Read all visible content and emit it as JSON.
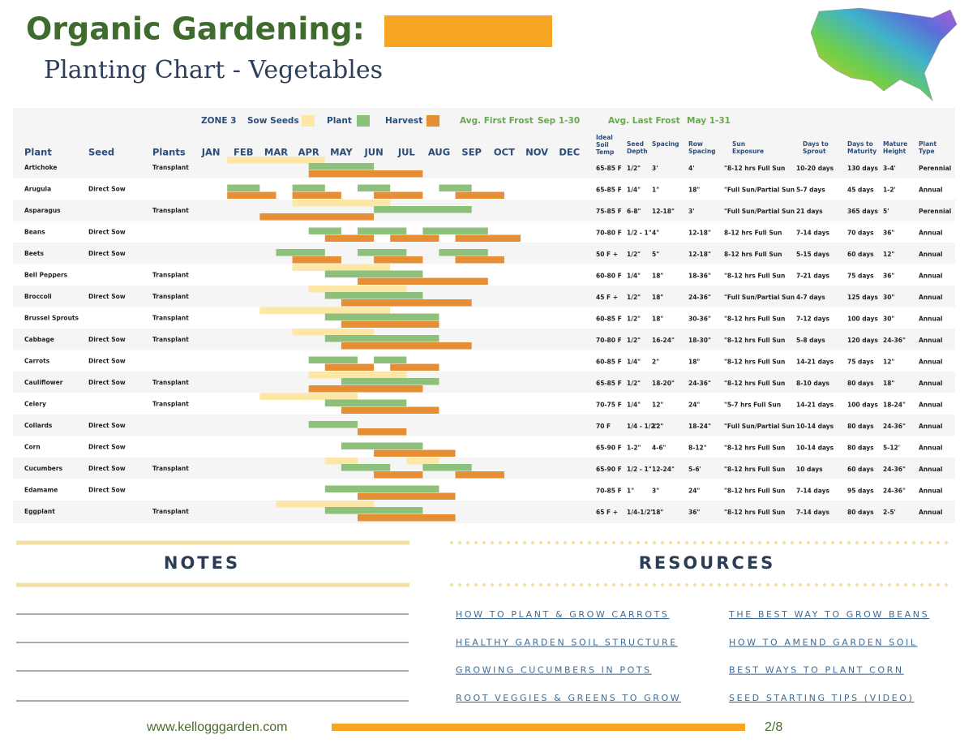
{
  "header": {
    "title": "Organic Gardening:",
    "subtitle": "Planting Chart - Vegetables"
  },
  "legend": {
    "zone": "ZONE 3",
    "sow": "Sow Seeds",
    "plant": "Plant",
    "harvest": "Harvest",
    "first_frost": "Avg. First Frost",
    "first_frost_dates": "Sep 1-30",
    "last_frost": "Avg. Last Frost",
    "last_frost_dates": "May 1-31"
  },
  "columns": {
    "plant": "Plant",
    "seed": "Seed",
    "plants": "Plants",
    "temp": [
      "Ideal",
      "Soil",
      "Temp"
    ],
    "depth": [
      "Seed",
      "Depth"
    ],
    "spacing": [
      "Spacing"
    ],
    "row_spacing": [
      "Row",
      "Spacing"
    ],
    "sun": [
      "Sun",
      "Exposure"
    ],
    "sprout": [
      "Days to",
      "Sprout"
    ],
    "maturity": [
      "Days to",
      "Maturity"
    ],
    "height": [
      "Mature",
      "Height"
    ],
    "type": [
      "Plant",
      "Type"
    ]
  },
  "months": [
    "JAN",
    "FEB",
    "MAR",
    "APR",
    "MAY",
    "JUN",
    "JUL",
    "AUG",
    "SEP",
    "OCT",
    "NOV",
    "DEC"
  ],
  "rows": [
    {
      "plant": "Artichoke",
      "seed": null,
      "plants": "Transplant",
      "temp": "65-85 F",
      "depth": "1/2\"",
      "spacing": "3'",
      "row_spacing": "4'",
      "sun": "\"8-12 hrs Full Sun",
      "sprout": "10-20 days",
      "maturity": "130 days",
      "height": "3-4'",
      "type": "Perennial",
      "sow": [
        [
          1,
          4
        ]
      ],
      "plant_bars": [
        [
          3.5,
          5.5
        ]
      ],
      "harvest": [
        [
          3.5,
          7
        ]
      ]
    },
    {
      "plant": "Arugula",
      "seed": "Direct Sow",
      "plants": null,
      "temp": "65-85 F",
      "depth": "1/4\"",
      "spacing": "1\"",
      "row_spacing": "18\"",
      "sun": "\"Full Sun/Partial Sun",
      "sprout": "5-7 days",
      "maturity": "45 days",
      "height": "1-2'",
      "type": "Annual",
      "sow": [],
      "plant_bars": [
        [
          1,
          2
        ],
        [
          3,
          4
        ],
        [
          5,
          6
        ],
        [
          7.5,
          8.5
        ]
      ],
      "harvest": [
        [
          1,
          2.5
        ],
        [
          3,
          4.5
        ],
        [
          5.5,
          7
        ],
        [
          8,
          9.5
        ]
      ]
    },
    {
      "plant": "Asparagus",
      "seed": null,
      "plants": "Transplant",
      "temp": "75-85 F",
      "depth": "6-8\"",
      "spacing": "12-18\"",
      "row_spacing": "3'",
      "sun": "\"Full Sun/Partial Sun",
      "sprout": "21 days",
      "maturity": "365 days",
      "height": "5'",
      "type": "Perennial",
      "sow": [
        [
          3,
          6
        ]
      ],
      "plant_bars": [
        [
          5.5,
          8.5
        ]
      ],
      "harvest": [
        [
          2,
          5.5
        ]
      ]
    },
    {
      "plant": "Beans",
      "seed": "Direct Sow",
      "plants": null,
      "temp": "70-80 F",
      "depth": "1/2 - 1\"",
      "spacing": "4\"",
      "row_spacing": "12-18\"",
      "sun": "8-12 hrs Full Sun",
      "sprout": "7-14 days",
      "maturity": "70 days",
      "height": "36\"",
      "type": "Annual",
      "sow": [],
      "plant_bars": [
        [
          3.5,
          4.5
        ],
        [
          5,
          6.5
        ],
        [
          7,
          9
        ]
      ],
      "harvest": [
        [
          4,
          5.5
        ],
        [
          6,
          7.5
        ],
        [
          8,
          10
        ]
      ]
    },
    {
      "plant": "Beets",
      "seed": "Direct Sow",
      "plants": null,
      "temp": "50 F +",
      "depth": "1/2\"",
      "spacing": "5\"",
      "row_spacing": "12-18\"",
      "sun": "8-12 hrs Full Sun",
      "sprout": "5-15 days",
      "maturity": "60 days",
      "height": "12\"",
      "type": "Annual",
      "sow": [],
      "plant_bars": [
        [
          2.5,
          4
        ],
        [
          5,
          6.5
        ],
        [
          7.5,
          9
        ]
      ],
      "harvest": [
        [
          3,
          4.5
        ],
        [
          5.5,
          7
        ],
        [
          8,
          9.5
        ]
      ]
    },
    {
      "plant": "Bell Peppers",
      "seed": null,
      "plants": "Transplant",
      "temp": "60-80 F",
      "depth": "1/4\"",
      "spacing": "18\"",
      "row_spacing": "18-36\"",
      "sun": "\"8-12 hrs Full Sun",
      "sprout": "7-21 days",
      "maturity": "75 days",
      "height": "36\"",
      "type": "Annual",
      "sow": [
        [
          3,
          6
        ]
      ],
      "plant_bars": [
        [
          4,
          7
        ]
      ],
      "harvest": [
        [
          5,
          9
        ]
      ]
    },
    {
      "plant": "Broccoli",
      "seed": "Direct Sow",
      "plants": "Transplant",
      "temp": "45 F +",
      "depth": "1/2\"",
      "spacing": "18\"",
      "row_spacing": "24-36\"",
      "sun": "\"Full Sun/Partial Sun",
      "sprout": "4-7 days",
      "maturity": "125 days",
      "height": "30\"",
      "type": "Annual",
      "sow": [
        [
          3.5,
          6.5
        ]
      ],
      "plant_bars": [
        [
          4,
          7
        ]
      ],
      "harvest": [
        [
          4.5,
          8.5
        ]
      ]
    },
    {
      "plant": "Brussel Sprouts",
      "seed": null,
      "plants": "Transplant",
      "temp": "60-85 F",
      "depth": "1/2\"",
      "spacing": "18\"",
      "row_spacing": "30-36\"",
      "sun": "\"8-12 hrs Full Sun",
      "sprout": "7-12 days",
      "maturity": "100 days",
      "height": "30\"",
      "type": "Annual",
      "sow": [
        [
          2,
          6
        ]
      ],
      "plant_bars": [
        [
          4,
          7.5
        ]
      ],
      "harvest": [
        [
          4.5,
          7.5
        ]
      ]
    },
    {
      "plant": "Cabbage",
      "seed": "Direct Sow",
      "plants": "Transplant",
      "temp": "70-80 F",
      "depth": "1/2\"",
      "spacing": "16-24\"",
      "row_spacing": "18-30\"",
      "sun": "\"8-12 hrs Full Sun",
      "sprout": "5-8 days",
      "maturity": "120 days",
      "height": "24-36\"",
      "type": "Annual",
      "sow": [
        [
          3,
          5.5
        ]
      ],
      "plant_bars": [
        [
          4,
          7.5
        ]
      ],
      "harvest": [
        [
          4.5,
          8.5
        ]
      ]
    },
    {
      "plant": "Carrots",
      "seed": "Direct Sow",
      "plants": null,
      "temp": "60-85 F",
      "depth": "1/4\"",
      "spacing": "2\"",
      "row_spacing": "18\"",
      "sun": "\"8-12 hrs Full Sun",
      "sprout": "14-21 days",
      "maturity": "75 days",
      "height": "12\"",
      "type": "Annual",
      "sow": [],
      "plant_bars": [
        [
          3.5,
          5
        ],
        [
          5.5,
          6.5
        ]
      ],
      "harvest": [
        [
          4,
          5.5
        ],
        [
          6,
          7.5
        ]
      ]
    },
    {
      "plant": "Cauliflower",
      "seed": "Direct Sow",
      "plants": "Transplant",
      "temp": "65-85 F",
      "depth": "1/2\"",
      "spacing": "18-20\"",
      "row_spacing": "24-36\"",
      "sun": "\"8-12 hrs Full Sun",
      "sprout": "8-10 days",
      "maturity": "80 days",
      "height": "18\"",
      "type": "Annual",
      "sow": [
        [
          3.5,
          6.5
        ]
      ],
      "plant_bars": [
        [
          4.5,
          7.5
        ]
      ],
      "harvest": [
        [
          3.5,
          7
        ]
      ]
    },
    {
      "plant": "Celery",
      "seed": null,
      "plants": "Transplant",
      "temp": "70-75 F",
      "depth": "1/4\"",
      "spacing": "12\"",
      "row_spacing": "24\"",
      "sun": "\"5-7 hrs Full Sun",
      "sprout": "14-21 days",
      "maturity": "100 days",
      "height": "18-24\"",
      "type": "Annual",
      "sow": [
        [
          2,
          5
        ]
      ],
      "plant_bars": [
        [
          4,
          6.5
        ]
      ],
      "harvest": [
        [
          4.5,
          7.5
        ]
      ]
    },
    {
      "plant": "Collards",
      "seed": "Direct Sow",
      "plants": null,
      "temp": "70 F",
      "depth": "1/4 - 1/2\"",
      "spacing": "12\"",
      "row_spacing": "18-24\"",
      "sun": "\"Full Sun/Partial Sun",
      "sprout": "10-14 days",
      "maturity": "80 days",
      "height": "24-36\"",
      "type": "Annual",
      "sow": [],
      "plant_bars": [
        [
          3.5,
          5
        ]
      ],
      "harvest": [
        [
          5,
          6.5
        ]
      ]
    },
    {
      "plant": "Corn",
      "seed": "Direct Sow",
      "plants": null,
      "temp": "65-90 F",
      "depth": "1-2\"",
      "spacing": "4-6\"",
      "row_spacing": "8-12\"",
      "sun": "\"8-12 hrs Full Sun",
      "sprout": "10-14 days",
      "maturity": "80 days",
      "height": "5-12'",
      "type": "Annual",
      "sow": [],
      "plant_bars": [
        [
          4.5,
          7
        ]
      ],
      "harvest": [
        [
          5.5,
          8
        ]
      ]
    },
    {
      "plant": "Cucumbers",
      "seed": "Direct Sow",
      "plants": "Transplant",
      "temp": "65-90 F",
      "depth": "1/2 - 1\"",
      "spacing": "12-24\"",
      "row_spacing": "5-6'",
      "sun": "\"8-12 hrs Full Sun",
      "sprout": "10 days",
      "maturity": "60 days",
      "height": "24-36\"",
      "type": "Annual",
      "sow": [
        [
          4,
          5
        ],
        [
          6.5,
          7.5
        ]
      ],
      "plant_bars": [
        [
          4.5,
          6
        ],
        [
          7,
          8.5
        ]
      ],
      "harvest": [
        [
          5.5,
          7
        ],
        [
          8,
          9.5
        ]
      ]
    },
    {
      "plant": "Edamame",
      "seed": "Direct Sow",
      "plants": null,
      "temp": "70-85 F",
      "depth": "1\"",
      "spacing": "3\"",
      "row_spacing": "24\"",
      "sun": "\"8-12 hrs Full Sun",
      "sprout": "7-14 days",
      "maturity": "95 days",
      "height": "24-36\"",
      "type": "Annual",
      "sow": [],
      "plant_bars": [
        [
          4,
          7.5
        ]
      ],
      "harvest": [
        [
          5,
          8
        ]
      ]
    },
    {
      "plant": "Eggplant",
      "seed": null,
      "plants": "Transplant",
      "temp": "65 F +",
      "depth": "1/4-1/2\"",
      "spacing": "18\"",
      "row_spacing": "36\"",
      "sun": "\"8-12 hrs Full Sun",
      "sprout": "7-14 days",
      "maturity": "80 days",
      "height": "2-5'",
      "type": "Annual",
      "sow": [
        [
          2.5,
          5.5
        ]
      ],
      "plant_bars": [
        [
          4,
          7
        ]
      ],
      "harvest": [
        [
          5,
          8
        ]
      ]
    }
  ],
  "notes": {
    "title": "NOTES"
  },
  "resources": {
    "title": "RESOURCES",
    "links": [
      "HOW TO PLANT & GROW CARROTS",
      "THE BEST WAY TO GROW BEANS",
      "HEALTHY GARDEN SOIL STRUCTURE",
      "HOW TO AMEND GARDEN SOIL",
      "GROWING CUCUMBERS IN POTS",
      "BEST WAYS TO PLANT CORN",
      "ROOT VEGGIES & GREENS TO GROW",
      "SEED STARTING TIPS (VIDEO)"
    ]
  },
  "footer": {
    "url": "www.kellogggarden.com",
    "page": "2/8"
  }
}
